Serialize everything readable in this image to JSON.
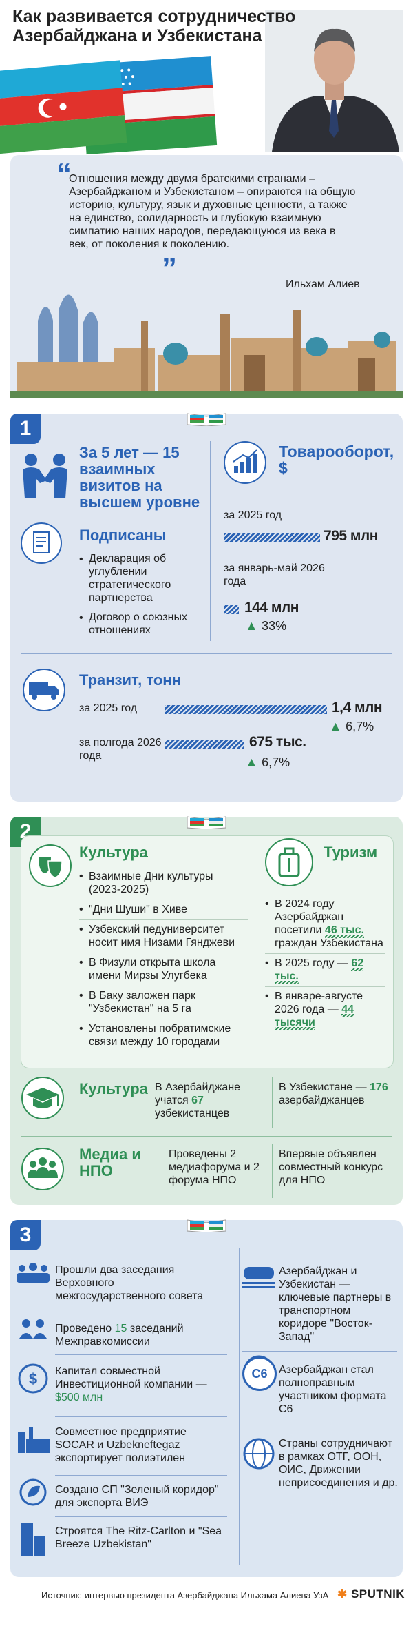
{
  "header": {
    "title": "Как развивается сотрудничество Азербайджана и Узбекистана"
  },
  "quote": {
    "text": "Отношения между двумя братскими странами – Азербайджаном и Узбекистаном – опираются на общую историю, культуру, язык и духовные ценности, а также на единство, солидарность и глубокую взаимную симпатию наших народов, передающуюся из века в век, от поколения к поколению.",
    "author": "Ильхам Алиев"
  },
  "section1": {
    "number": "1",
    "visits": "За 5 лет — 15 взаимных визитов на высшем уровне",
    "signed": {
      "title": "Подписаны",
      "items": [
        [
          "Декларация об углублении стратегического партнерства"
        ],
        [
          "Договор о союзных отношениях"
        ]
      ]
    },
    "trade": {
      "title": "Товарооборот, $",
      "rows": [
        {
          "period": "за 2025 год",
          "value": "795 млн"
        },
        {
          "period": "за январь-май 2026 года",
          "value": "144 млн",
          "growth": "33%"
        }
      ]
    },
    "transit": {
      "title": "Транзит, тонн",
      "rows": [
        {
          "period": "за 2025 год",
          "value": "1,4 млн",
          "growth": "6,7%"
        },
        {
          "period": "за полгода 2026 года",
          "value": "675 тыс.",
          "growth": "6,7%"
        }
      ]
    }
  },
  "section2": {
    "number": "2",
    "culture": {
      "title": "Культура",
      "items": [
        [
          "Взаимные Дни культуры (2023-2025)"
        ],
        [
          "\"Дни Шуши\" в Хиве"
        ],
        [
          "Узбекский педуниверситет носит имя Низами Гянджеви"
        ],
        [
          "В Физули открыта школа имени Мирзы Улугбека"
        ],
        [
          "В Баку заложен парк \"Узбекистан\" на 5 га"
        ],
        [
          "Установлены побратимские связи между 10 городами"
        ]
      ]
    },
    "tourism": {
      "title": "Туризм",
      "items": [
        [
          "В 2024 году Азербайджан посетили ",
          "46 тыс.",
          " граждан Узбекистана"
        ],
        [
          "В 2025 году — ",
          "62 тыс."
        ],
        [
          "В январе-августе 2026 года — ",
          "44 тысячи"
        ]
      ]
    },
    "education": {
      "title": "Культура",
      "left": [
        "В Азербайджане учатся ",
        "67",
        " узбекистанцев"
      ],
      "right": [
        "В Узбекистане — ",
        "176",
        " азербайджанцев"
      ]
    },
    "media": {
      "title": "Медиа и НПО",
      "left": "Проведены 2 медиафорума и 2 форума НПО",
      "right": "Впервые объявлен совместный конкурс для НПО"
    }
  },
  "section3": {
    "number": "3",
    "left": [
      [
        "Прошли два заседания Верховного межгосударственного совета"
      ],
      [
        "Проведено ",
        "15",
        " заседаний Межправкомиссии"
      ],
      [
        "Капитал совместной Инвестиционной компании — ",
        "$500 млн"
      ],
      [
        "Совместное предприятие SOCAR и Uzbekneftegaz экспортирует полиэтилен"
      ],
      [
        "Создано СП \"Зеленый коридор\" для экспорта ВИЭ"
      ],
      [
        "Строятся The Ritz-Carlton и \"Sea Breeze Uzbekistan\""
      ]
    ],
    "right": [
      [
        "Азербайджан и Узбекистан — ключевые партнеры в транспортном коридоре \"Восток-Запад\""
      ],
      [
        "Азербайджан стал полноправным участником формата С6"
      ],
      [
        "Страны сотрудничают в рамках ОТГ, ООН, ОИС, Движении неприсоединения и др."
      ]
    ],
    "icon_c6": "С6"
  },
  "footer": {
    "source": "Источник: интервью президента Азербайджана Ильхама Алиева УзА",
    "brand": "SPUTNIK"
  }
}
